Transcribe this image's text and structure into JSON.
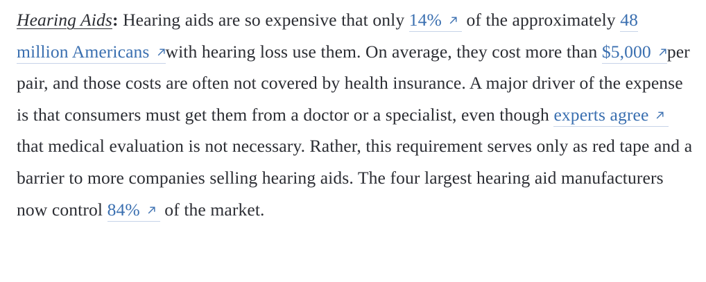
{
  "paragraph": {
    "heading": "Hearing Aids",
    "colon": ":",
    "text_1": " Hearing aids are so expensive that only ",
    "link_1": "14%",
    "text_2": " of the approximately ",
    "link_2": "48 million Americans",
    "text_3": "with hearing loss use them. On average, they cost more than ",
    "link_3": "$5,000",
    "text_4": "per pair, and those costs are often not covered by health insurance. A major driver of the expense is that consumers must get them from a doctor or a specialist, even though ",
    "link_4": "experts agree",
    "text_5": " that medical evaluation is not necessary. Rather, this requirement serves only as red tape and a barrier to more companies selling hearing aids. The four largest hearing aid manufacturers now control ",
    "link_5": "84%",
    "text_6": " of the market."
  },
  "colors": {
    "text": "#2b2d33",
    "link": "#3a6fb0",
    "link_underline": "#c6d3e8"
  },
  "icons": {
    "external_link": "arrow-up-right-icon"
  }
}
